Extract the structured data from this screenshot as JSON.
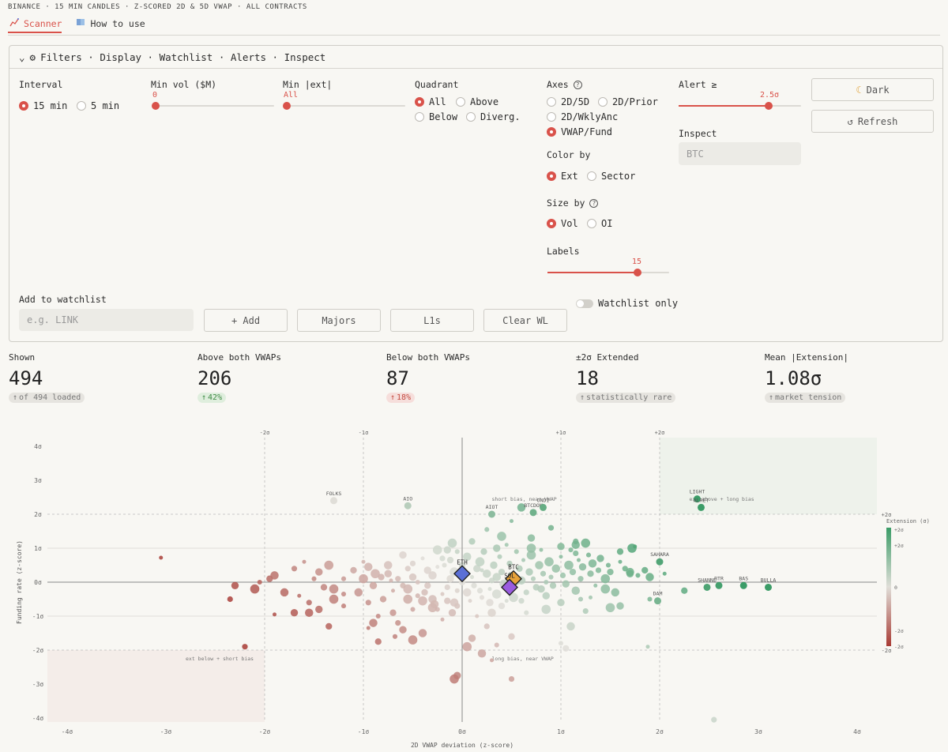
{
  "topline": "BINANCE · 15 MIN CANDLES · Z-SCORED 2D & 5D VWAP · ALL CONTRACTS",
  "tabs": [
    {
      "icon": "scanner-icon",
      "label": "Scanner"
    },
    {
      "icon": "book-icon",
      "label": "How to use"
    }
  ],
  "panel": {
    "title": "Filters · Display · Watchlist · Alerts · Inspect",
    "interval": {
      "label": "Interval",
      "options": [
        "15 min",
        "5 min"
      ],
      "selected": "15 min"
    },
    "min_vol": {
      "label": "Min vol ($M)",
      "value": "0",
      "fraction": 0
    },
    "min_ext": {
      "label": "Min |ext|",
      "value": "All",
      "fraction": 0
    },
    "quadrant": {
      "label": "Quadrant",
      "options": [
        "All",
        "Above",
        "Below",
        "Diverg."
      ],
      "selected": "All"
    },
    "axes": {
      "label": "Axes",
      "options": [
        "2D/5D",
        "2D/Prior",
        "2D/WklyAnc",
        "VWAP/Fund"
      ],
      "selected": "VWAP/Fund"
    },
    "color_by": {
      "label": "Color by",
      "options": [
        "Ext",
        "Sector"
      ],
      "selected": "Ext"
    },
    "size_by": {
      "label": "Size by",
      "options": [
        "Vol",
        "OI"
      ],
      "selected": "Vol"
    },
    "labels": {
      "label": "Labels",
      "value": "15",
      "fraction": 0.74
    },
    "alert": {
      "label": "Alert ≥",
      "value": "2.5σ",
      "fraction": 0.74
    },
    "inspect": {
      "label": "Inspect",
      "placeholder": "BTC"
    },
    "dark_button": "Dark",
    "refresh_button": "Refresh",
    "watchlist": {
      "label": "Add to watchlist",
      "placeholder": "e.g. LINK",
      "add": "+ Add",
      "majors": "Majors",
      "l1s": "L1s",
      "clear": "Clear WL",
      "only_label": "Watchlist only",
      "only_on": false
    }
  },
  "stats": [
    {
      "label": "Shown",
      "value": "494",
      "badge": "of 494 loaded",
      "tone": "neutral"
    },
    {
      "label": "Above both VWAPs",
      "value": "206",
      "badge": "42%",
      "tone": "green"
    },
    {
      "label": "Below both VWAPs",
      "value": "87",
      "badge": "18%",
      "tone": "red"
    },
    {
      "label": "±2σ Extended",
      "value": "18",
      "badge": "statistically rare",
      "tone": "neutral"
    },
    {
      "label": "Mean |Extension|",
      "value": "1.08σ",
      "badge": "market tension",
      "tone": "neutral"
    }
  ],
  "chart_data": {
    "type": "scatter",
    "xlabel": "2D VWAP deviation (z-score)",
    "ylabel": "Funding rate (z-score)",
    "xlim": [
      -4.2,
      4.0
    ],
    "ylim": [
      -4.2,
      4.2
    ],
    "x_ticks": [
      "-4σ",
      "-3σ",
      "-2σ",
      "-1σ",
      "0σ",
      "1σ",
      "2σ",
      "3σ",
      "4σ"
    ],
    "y_ticks": [
      "4σ",
      "3σ",
      "2σ",
      "1σ",
      "0σ",
      "-1σ",
      "-2σ",
      "-3σ",
      "-4σ"
    ],
    "top_ticks": [
      "-2σ",
      "-1σ",
      "+1σ",
      "+2σ"
    ],
    "right_ticks": [
      "+2σ",
      "-2σ"
    ],
    "legend_title": "Extension (σ)",
    "legend_ticks": [
      "+2σ",
      "+2σ",
      "0",
      "-2σ",
      "-2σ"
    ],
    "annotations": [
      {
        "text": "ext above + long bias",
        "x": 2.3,
        "y": 2.4
      },
      {
        "text": "short bias, near VWAP",
        "x": 0.3,
        "y": 2.4
      },
      {
        "text": "ext below + short bias",
        "x": -2.8,
        "y": -2.3
      },
      {
        "text": "long bias, near VWAP",
        "x": 0.3,
        "y": -2.3
      }
    ],
    "featured": [
      {
        "name": "ETH",
        "x": 0.0,
        "y": 0.25,
        "color": "#5b6fd6"
      },
      {
        "name": "BTC",
        "x": 0.52,
        "y": 0.1,
        "color": "#e8a33a"
      },
      {
        "name": "SOL",
        "x": 0.48,
        "y": -0.15,
        "color": "#9a5ce0"
      }
    ],
    "labeled_points": [
      {
        "name": "FOLKS",
        "x": -1.3,
        "y": 2.4
      },
      {
        "name": "AIO",
        "x": -0.55,
        "y": 2.25
      },
      {
        "name": "AIOT",
        "x": 0.3,
        "y": 2.0
      },
      {
        "name": "BTCDOM",
        "x": 0.72,
        "y": 2.05
      },
      {
        "name": "ONDI",
        "x": 0.82,
        "y": 2.2
      },
      {
        "name": "LIGHT",
        "x": 2.38,
        "y": 2.45
      },
      {
        "name": "ALRET",
        "x": 2.42,
        "y": 2.2
      },
      {
        "name": "SAHARA",
        "x": 2.0,
        "y": 0.6
      },
      {
        "name": "SHANNE",
        "x": 2.48,
        "y": -0.15
      },
      {
        "name": "BTR",
        "x": 2.6,
        "y": -0.1
      },
      {
        "name": "BAS",
        "x": 2.85,
        "y": -0.1
      },
      {
        "name": "BULLA",
        "x": 3.1,
        "y": -0.15
      },
      {
        "name": "DAM",
        "x": 1.98,
        "y": -0.55
      }
    ],
    "points": [
      [
        -3.05,
        0.72
      ],
      [
        -2.35,
        -0.5
      ],
      [
        -2.3,
        -0.1
      ],
      [
        -2.1,
        -0.2
      ],
      [
        -2.05,
        0.0
      ],
      [
        -1.95,
        0.1
      ],
      [
        -1.9,
        0.2
      ],
      [
        -1.6,
        0.6
      ],
      [
        -1.7,
        0.4
      ],
      [
        -1.45,
        0.3
      ],
      [
        -1.35,
        0.5
      ],
      [
        -1.5,
        0.1
      ],
      [
        -1.4,
        -0.15
      ],
      [
        -1.8,
        -0.3
      ],
      [
        -1.65,
        -0.4
      ],
      [
        -1.55,
        -0.6
      ],
      [
        -1.45,
        -0.8
      ],
      [
        -1.3,
        -0.5
      ],
      [
        -1.2,
        -0.7
      ],
      [
        -1.35,
        -1.3
      ],
      [
        -1.55,
        -0.9
      ],
      [
        -1.9,
        -0.95
      ],
      [
        -2.2,
        -1.9
      ],
      [
        -1.7,
        -0.9
      ],
      [
        -1.3,
        -0.2
      ],
      [
        -1.2,
        0.1
      ],
      [
        -1.1,
        0.35
      ],
      [
        -1.05,
        -0.3
      ],
      [
        -1.0,
        0.6
      ],
      [
        -0.95,
        -0.6
      ],
      [
        -0.9,
        -0.1
      ],
      [
        -0.88,
        0.25
      ],
      [
        -0.85,
        -1.0
      ],
      [
        -0.8,
        -0.5
      ],
      [
        -0.75,
        0.5
      ],
      [
        -0.7,
        -0.25
      ],
      [
        -0.65,
        0.1
      ],
      [
        -0.6,
        0.8
      ],
      [
        -0.55,
        -0.5
      ],
      [
        -0.5,
        -0.8
      ],
      [
        -0.7,
        -0.9
      ],
      [
        -0.9,
        -1.2
      ],
      [
        -0.95,
        -1.35
      ],
      [
        -0.65,
        -1.2
      ],
      [
        -0.6,
        -1.4
      ],
      [
        -0.5,
        -1.7
      ],
      [
        -0.68,
        -1.6
      ],
      [
        -0.85,
        -1.75
      ],
      [
        -0.4,
        -1.5
      ],
      [
        -0.2,
        -1.1
      ],
      [
        -0.05,
        -0.7
      ],
      [
        -0.1,
        -0.9
      ],
      [
        -0.3,
        -0.75
      ],
      [
        -0.45,
        -0.4
      ],
      [
        -0.35,
        -0.1
      ],
      [
        -0.3,
        0.2
      ],
      [
        -0.25,
        0.45
      ],
      [
        -0.2,
        0.7
      ],
      [
        -0.15,
        0.95
      ],
      [
        -0.1,
        1.15
      ],
      [
        -0.05,
        0.9
      ],
      [
        0.0,
        0.5
      ],
      [
        0.05,
        0.75
      ],
      [
        -0.4,
        0.7
      ],
      [
        -0.55,
        0.4
      ],
      [
        -0.5,
        0.15
      ],
      [
        -0.55,
        -0.2
      ],
      [
        -0.45,
        0.0
      ],
      [
        -0.38,
        -0.3
      ],
      [
        -0.3,
        -0.5
      ],
      [
        -0.2,
        -0.35
      ],
      [
        -0.15,
        -0.15
      ],
      [
        -0.12,
        0.1
      ],
      [
        -0.08,
        0.3
      ],
      [
        -0.05,
        -0.25
      ],
      [
        0.0,
        0.0
      ],
      [
        0.05,
        -0.3
      ],
      [
        0.1,
        0.15
      ],
      [
        0.12,
        -0.1
      ],
      [
        0.15,
        0.4
      ],
      [
        0.18,
        0.6
      ],
      [
        0.2,
        -0.45
      ],
      [
        0.22,
        0.9
      ],
      [
        0.25,
        0.25
      ],
      [
        0.28,
        -0.2
      ],
      [
        0.3,
        0.05
      ],
      [
        0.32,
        0.5
      ],
      [
        0.35,
        -0.35
      ],
      [
        0.38,
        0.75
      ],
      [
        0.4,
        0.3
      ],
      [
        0.42,
        -0.05
      ],
      [
        0.45,
        1.1
      ],
      [
        0.48,
        0.55
      ],
      [
        0.5,
        0.2
      ],
      [
        0.52,
        -0.45
      ],
      [
        0.55,
        0.9
      ],
      [
        0.58,
        0.4
      ],
      [
        0.6,
        0.05
      ],
      [
        0.62,
        0.65
      ],
      [
        0.65,
        -0.3
      ],
      [
        0.68,
        0.3
      ],
      [
        0.7,
        0.8
      ],
      [
        0.72,
        0.1
      ],
      [
        0.75,
        -0.15
      ],
      [
        0.78,
        0.5
      ],
      [
        0.8,
        0.95
      ],
      [
        0.82,
        0.25
      ],
      [
        0.85,
        -0.4
      ],
      [
        0.88,
        0.6
      ],
      [
        0.9,
        0.15
      ],
      [
        0.92,
        -0.1
      ],
      [
        0.95,
        0.4
      ],
      [
        1.0,
        0.75
      ],
      [
        1.02,
        0.2
      ],
      [
        1.05,
        -0.05
      ],
      [
        1.08,
        0.5
      ],
      [
        1.1,
        0.95
      ],
      [
        1.12,
        0.3
      ],
      [
        1.15,
        -0.25
      ],
      [
        1.18,
        0.65
      ],
      [
        1.2,
        0.1
      ],
      [
        1.22,
        0.45
      ],
      [
        1.25,
        1.15
      ],
      [
        1.28,
        0.8
      ],
      [
        1.3,
        0.25
      ],
      [
        1.32,
        0.55
      ],
      [
        1.35,
        -0.1
      ],
      [
        1.38,
        0.35
      ],
      [
        1.4,
        0.7
      ],
      [
        1.45,
        0.1
      ],
      [
        1.48,
        0.5
      ],
      [
        1.5,
        0.3
      ],
      [
        1.55,
        -0.3
      ],
      [
        1.6,
        0.6
      ],
      [
        1.65,
        0.4
      ],
      [
        1.7,
        0.25
      ],
      [
        1.72,
        1.0
      ],
      [
        1.78,
        0.2
      ],
      [
        1.85,
        0.35
      ],
      [
        1.9,
        0.15
      ],
      [
        1.3,
        -0.45
      ],
      [
        1.25,
        -0.85
      ],
      [
        1.0,
        -0.6
      ],
      [
        0.85,
        -0.8
      ],
      [
        0.65,
        -0.9
      ],
      [
        0.4,
        -0.7
      ],
      [
        0.3,
        -0.9
      ],
      [
        0.15,
        -1.0
      ],
      [
        0.25,
        -1.3
      ],
      [
        0.1,
        -1.65
      ],
      [
        0.05,
        -1.9
      ],
      [
        0.35,
        -1.85
      ],
      [
        0.5,
        -1.6
      ],
      [
        0.2,
        -2.1
      ],
      [
        0.3,
        -2.3
      ],
      [
        0.5,
        -2.85
      ],
      [
        -0.05,
        -2.75
      ],
      [
        -0.08,
        -2.85
      ],
      [
        1.0,
        -1.8
      ],
      [
        1.05,
        -1.95
      ],
      [
        1.1,
        -1.3
      ],
      [
        1.88,
        -1.9
      ],
      [
        2.55,
        -4.05
      ],
      [
        1.6,
        -0.7
      ],
      [
        1.5,
        -0.75
      ],
      [
        1.9,
        -0.5
      ],
      [
        2.25,
        -0.25
      ],
      [
        0.6,
        2.2
      ],
      [
        0.5,
        1.8
      ],
      [
        0.9,
        1.6
      ],
      [
        0.7,
        1.3
      ],
      [
        0.4,
        1.35
      ],
      [
        0.25,
        1.55
      ],
      [
        0.1,
        1.2
      ],
      [
        1.15,
        1.1
      ],
      [
        1.75,
        1.05
      ],
      [
        1.15,
        1.2
      ],
      [
        0.35,
        1.0
      ],
      [
        -0.25,
        0.95
      ],
      [
        -0.18,
        0.5
      ],
      [
        -0.12,
        0.65
      ],
      [
        -0.28,
        -0.65
      ],
      [
        0.45,
        -0.55
      ],
      [
        0.6,
        -0.55
      ],
      [
        0.8,
        -0.2
      ],
      [
        1.45,
        -0.2
      ],
      [
        1.2,
        -0.5
      ],
      [
        1.6,
        0.9
      ],
      [
        1.7,
        0.3
      ],
      [
        2.05,
        0.25
      ],
      [
        1.15,
        0.85
      ],
      [
        1.0,
        1.05
      ],
      [
        0.7,
        1.0
      ],
      [
        0.85,
        0.0
      ],
      [
        0.55,
        0.0
      ],
      [
        0.35,
        0.15
      ],
      [
        0.2,
        0.35
      ],
      [
        -0.6,
        -0.1
      ],
      [
        -0.75,
        0.25
      ],
      [
        -1.0,
        0.1
      ],
      [
        -1.2,
        -0.35
      ],
      [
        -0.82,
        0.15
      ],
      [
        -0.95,
        0.45
      ],
      [
        -0.72,
        0.05
      ],
      [
        -0.5,
        0.55
      ],
      [
        -0.35,
        0.35
      ],
      [
        -0.4,
        -0.55
      ],
      [
        -0.25,
        -0.8
      ],
      [
        -0.15,
        -0.55
      ],
      [
        -0.08,
        -0.6
      ],
      [
        0.08,
        -0.55
      ],
      [
        0.18,
        -0.25
      ],
      [
        0.28,
        -0.6
      ]
    ]
  }
}
